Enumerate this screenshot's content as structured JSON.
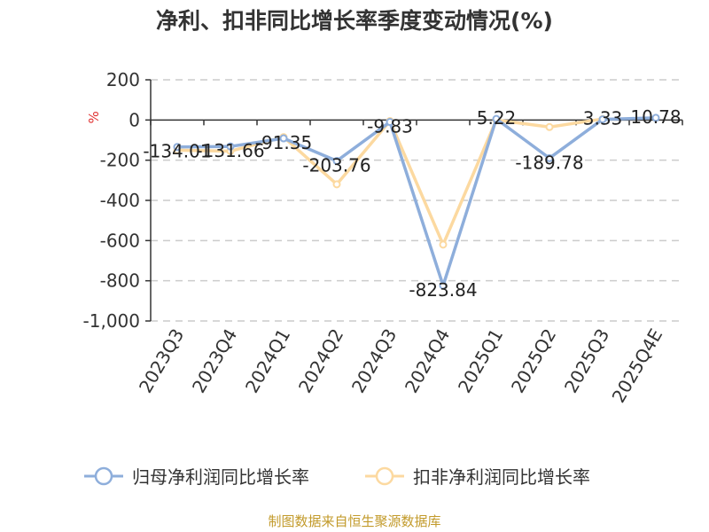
{
  "title": "净利、扣非同比增长率季度变动情况(%)",
  "source": "制图数据来自恒生聚源数据库",
  "chart_data": {
    "type": "line",
    "title": "净利、扣非同比增长率季度变动情况(%)",
    "ylabel": "%",
    "ylim": [
      -1000,
      200
    ],
    "yticks": [
      200,
      0,
      -200,
      -400,
      -600,
      -800,
      -1000
    ],
    "ytick_labels": [
      "200",
      "0",
      "-200",
      "-400",
      "-600",
      "-800",
      "-1,000"
    ],
    "grid": true,
    "legend": "bottom",
    "categories": [
      "2023Q3",
      "2023Q4",
      "2024Q1",
      "2024Q2",
      "2024Q3",
      "2024Q4",
      "2025Q1",
      "2025Q2",
      "2025Q3",
      "2025Q4E"
    ],
    "series": [
      {
        "name": "归母净利润同比增长率",
        "color": "#8eaedb",
        "values": [
          -134.01,
          -131.66,
          -91.35,
          -203.76,
          -9.83,
          -823.84,
          5.22,
          -189.78,
          3.33,
          10.78
        ],
        "labels": [
          "-134.01",
          "-131.66",
          "-91.35",
          "-203.76",
          "-9.83",
          "-823.84",
          "5.22",
          "-189.78",
          "3.33",
          "10.78"
        ]
      },
      {
        "name": "扣非净利润同比增长率",
        "color": "#fcd9a0",
        "values": [
          -150,
          -155,
          -85,
          -320,
          -5,
          -620,
          0,
          -35,
          5,
          null
        ]
      }
    ]
  }
}
